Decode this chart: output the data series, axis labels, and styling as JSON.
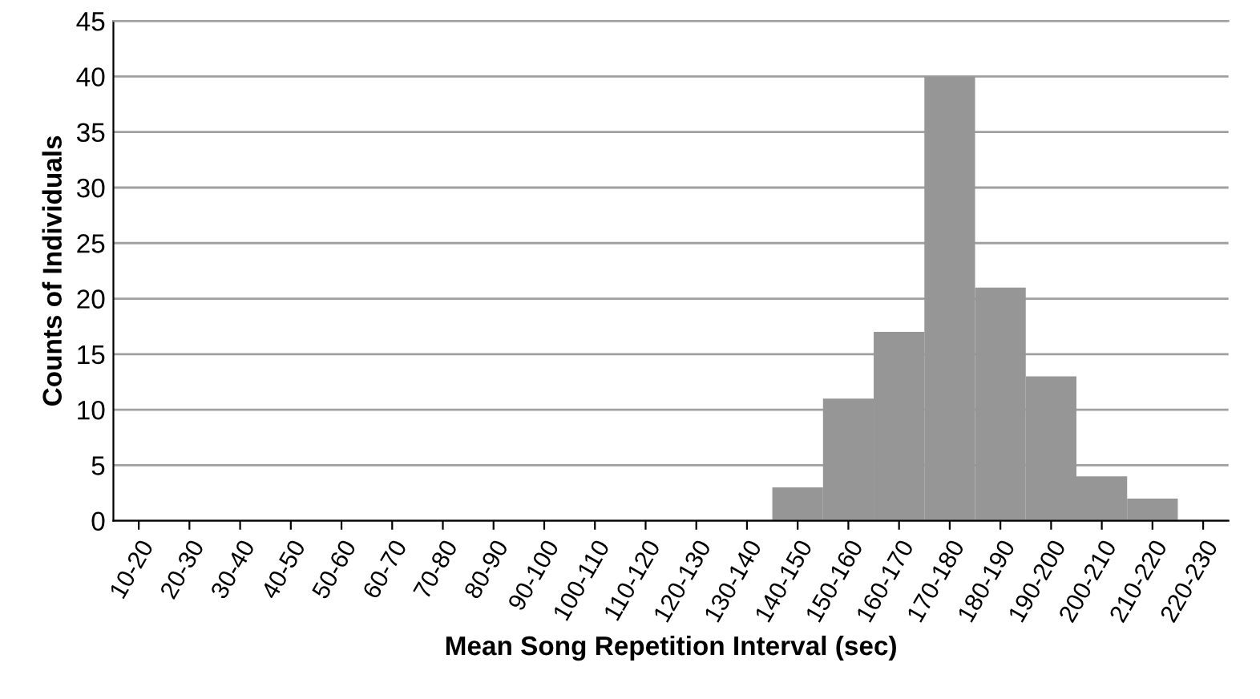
{
  "chart_data": {
    "type": "bar",
    "xlabel": "Mean Song Repetition Interval (sec)",
    "ylabel": "Counts of Individuals",
    "categories": [
      "10-20",
      "20-30",
      "30-40",
      "40-50",
      "50-60",
      "60-70",
      "70-80",
      "80-90",
      "90-100",
      "100-110",
      "110-120",
      "120-130",
      "130-140",
      "140-150",
      "150-160",
      "160-170",
      "170-180",
      "180-190",
      "190-200",
      "200-210",
      "210-220",
      "220-230"
    ],
    "values": [
      0,
      0,
      0,
      0,
      0,
      0,
      0,
      0,
      0,
      0,
      0,
      0,
      0,
      3,
      11,
      17,
      40,
      21,
      13,
      4,
      2,
      0
    ],
    "color": "#969696",
    "ylim": [
      0,
      45
    ],
    "yticks": [
      0,
      5,
      10,
      15,
      20,
      25,
      30,
      35,
      40,
      45
    ],
    "grid": "y",
    "legend": false
  }
}
